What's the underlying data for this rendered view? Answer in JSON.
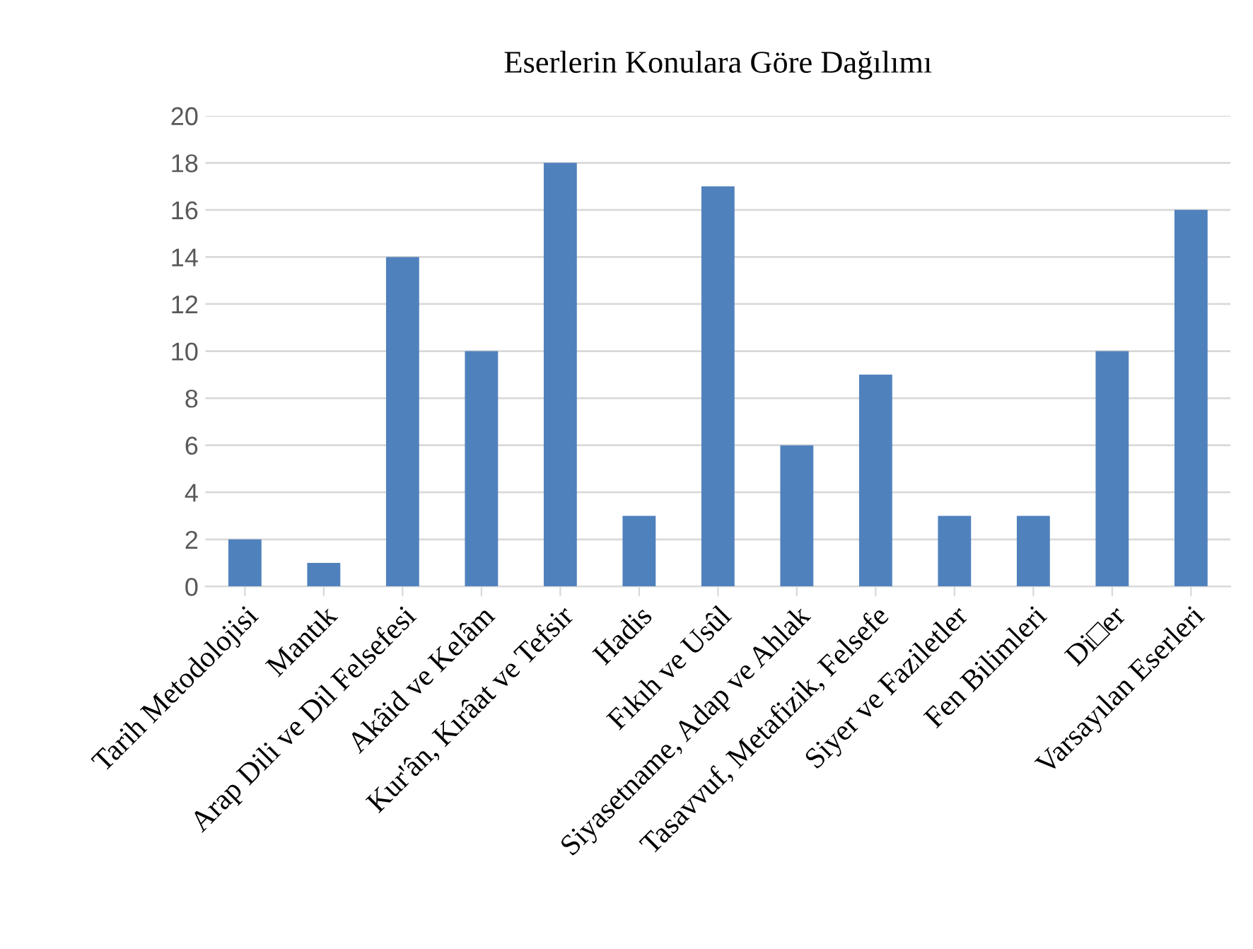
{
  "chart_data": {
    "type": "bar",
    "title": "Eserlerin Konulara Göre Dağılımı",
    "categories": [
      "Tarih Metodolojisi",
      "Mantık",
      "Arap Dili ve Dil Felsefesi",
      "Akâid ve Kelâm",
      "Kur'ân, Kırâat ve Tefsir",
      "Hadis",
      "Fıkıh ve Usûl",
      "Siyasetname, Adap ve Ahlak",
      "Tasavvuf, Metafizik, Felsefe",
      "Siyer ve Faziletler",
      "Fen Bilimleri",
      "Di□er",
      "Varsayılan Eserleri"
    ],
    "values": [
      2,
      1,
      14,
      10,
      18,
      3,
      17,
      6,
      9,
      3,
      3,
      10,
      16
    ],
    "color": "#4f81bd",
    "ylim": [
      0,
      20
    ],
    "yticks": [
      0,
      2,
      4,
      6,
      8,
      10,
      12,
      14,
      16,
      18,
      20
    ],
    "grid": "y",
    "legend": false
  }
}
